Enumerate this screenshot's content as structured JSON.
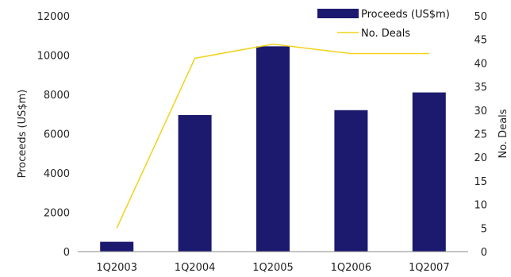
{
  "chart_data": {
    "type": "bar",
    "title": "",
    "categories": [
      "1Q2003",
      "1Q2004",
      "1Q2005",
      "1Q2006",
      "1Q2007"
    ],
    "ylabel": "Proceeds (US$m)",
    "y2label": "No. Deals",
    "ylim": [
      0,
      12000
    ],
    "y2lim": [
      0,
      50
    ],
    "yticks": [
      "0",
      "2000",
      "4000",
      "6000",
      "8000",
      "10000",
      "12000"
    ],
    "y2ticks": [
      "0",
      "5",
      "10",
      "15",
      "20",
      "25",
      "30",
      "35",
      "40",
      "45",
      "50"
    ],
    "grid": false,
    "legend_position": "top-right",
    "series": [
      {
        "name": "Proceeds (US$m)",
        "type": "bar",
        "axis": "left",
        "color": "#1c1a6e",
        "values": [
          500,
          6950,
          10450,
          7200,
          8100
        ]
      },
      {
        "name": "No. Deals",
        "type": "line",
        "axis": "right",
        "color": "#f2d21b",
        "values": [
          5,
          41,
          44,
          42,
          42
        ]
      }
    ]
  }
}
